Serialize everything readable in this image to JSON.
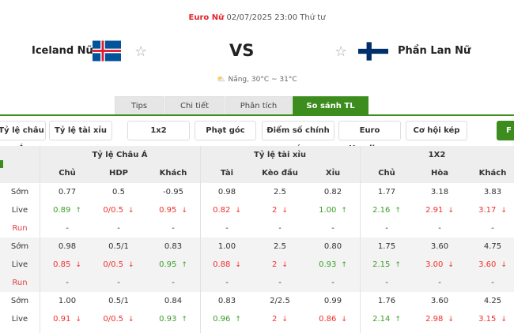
{
  "match": {
    "competition": "Euro Nữ",
    "datetime": "02/07/2025 23:00 Thứ tư",
    "home": "Iceland Nữ",
    "away": "Phần Lan Nữ",
    "vs": "VS",
    "weather": "Nắng, 30°C ~ 31°C"
  },
  "tabs": [
    {
      "label": "Tips"
    },
    {
      "label": "Chi tiết"
    },
    {
      "label": "Phân tích"
    },
    {
      "label": "So sánh TL",
      "active": true
    }
  ],
  "filters": [
    "Tỷ lệ châu Á",
    "Tỷ lệ tài xỉu",
    "1x2",
    "Phạt góc",
    "Điểm số chính xác",
    "Euro Handicap",
    "Cơ hội kép"
  ],
  "filter_extra": "F",
  "table": {
    "groups": [
      "Tỷ lệ Châu Á",
      "Tỷ lệ tài xỉu",
      "1X2"
    ],
    "columns": [
      "Chủ",
      "HDP",
      "Khách",
      "Tài",
      "Kèo đầu",
      "Xỉu",
      "Chủ",
      "Hòa",
      "Khách"
    ],
    "bookmakers": [
      {
        "rows": [
          {
            "label": "Sớm",
            "cells": [
              [
                "0.77",
                ""
              ],
              [
                "0.5",
                ""
              ],
              [
                "-0.95",
                ""
              ],
              [
                "0.98",
                ""
              ],
              [
                "2.5",
                ""
              ],
              [
                "0.82",
                ""
              ],
              [
                "1.77",
                ""
              ],
              [
                "3.18",
                ""
              ],
              [
                "3.83",
                ""
              ]
            ]
          },
          {
            "label": "Live",
            "cells": [
              [
                "0.89",
                "up"
              ],
              [
                "0/0.5",
                "down"
              ],
              [
                "0.95",
                "down"
              ],
              [
                "0.82",
                "down"
              ],
              [
                "2",
                "down"
              ],
              [
                "1.00",
                "up"
              ],
              [
                "2.16",
                "up"
              ],
              [
                "2.91",
                "down"
              ],
              [
                "3.17",
                "down"
              ]
            ]
          },
          {
            "label": "Run",
            "cells": [
              [
                "-",
                ""
              ],
              [
                "-",
                ""
              ],
              [
                "-",
                ""
              ],
              [
                "-",
                ""
              ],
              [
                "-",
                ""
              ],
              [
                "-",
                ""
              ],
              [
                "-",
                ""
              ],
              [
                "-",
                ""
              ],
              [
                "-",
                ""
              ]
            ]
          }
        ]
      },
      {
        "rows": [
          {
            "label": "Sớm",
            "cells": [
              [
                "0.98",
                ""
              ],
              [
                "0.5/1",
                ""
              ],
              [
                "0.83",
                ""
              ],
              [
                "1.00",
                ""
              ],
              [
                "2.5",
                ""
              ],
              [
                "0.80",
                ""
              ],
              [
                "1.75",
                ""
              ],
              [
                "3.60",
                ""
              ],
              [
                "4.75",
                ""
              ]
            ]
          },
          {
            "label": "Live",
            "cells": [
              [
                "0.85",
                "down"
              ],
              [
                "0/0.5",
                "down"
              ],
              [
                "0.95",
                "up"
              ],
              [
                "0.88",
                "down"
              ],
              [
                "2",
                "down"
              ],
              [
                "0.93",
                "up"
              ],
              [
                "2.15",
                "up"
              ],
              [
                "3.00",
                "down"
              ],
              [
                "3.60",
                "down"
              ]
            ]
          },
          {
            "label": "Run",
            "cells": [
              [
                "-",
                ""
              ],
              [
                "-",
                ""
              ],
              [
                "-",
                ""
              ],
              [
                "-",
                ""
              ],
              [
                "-",
                ""
              ],
              [
                "-",
                ""
              ],
              [
                "-",
                ""
              ],
              [
                "-",
                ""
              ],
              [
                "-",
                ""
              ]
            ]
          }
        ]
      },
      {
        "rows": [
          {
            "label": "Sớm",
            "cells": [
              [
                "1.00",
                ""
              ],
              [
                "0.5/1",
                ""
              ],
              [
                "0.84",
                ""
              ],
              [
                "0.83",
                ""
              ],
              [
                "2/2.5",
                ""
              ],
              [
                "0.99",
                ""
              ],
              [
                "1.76",
                ""
              ],
              [
                "3.60",
                ""
              ],
              [
                "4.25",
                ""
              ]
            ]
          },
          {
            "label": "Live",
            "cells": [
              [
                "0.91",
                "down"
              ],
              [
                "0/0.5",
                "down"
              ],
              [
                "0.93",
                "up"
              ],
              [
                "0.96",
                "up"
              ],
              [
                "2",
                "down"
              ],
              [
                "0.86",
                "down"
              ],
              [
                "2.14",
                "up"
              ],
              [
                "2.98",
                "down"
              ],
              [
                "3.15",
                "down"
              ]
            ]
          }
        ]
      }
    ]
  },
  "colors": {
    "accent": "#3c8c1e",
    "up": "#3aa028",
    "down": "#f0302c",
    "competition": "#e0252a"
  }
}
